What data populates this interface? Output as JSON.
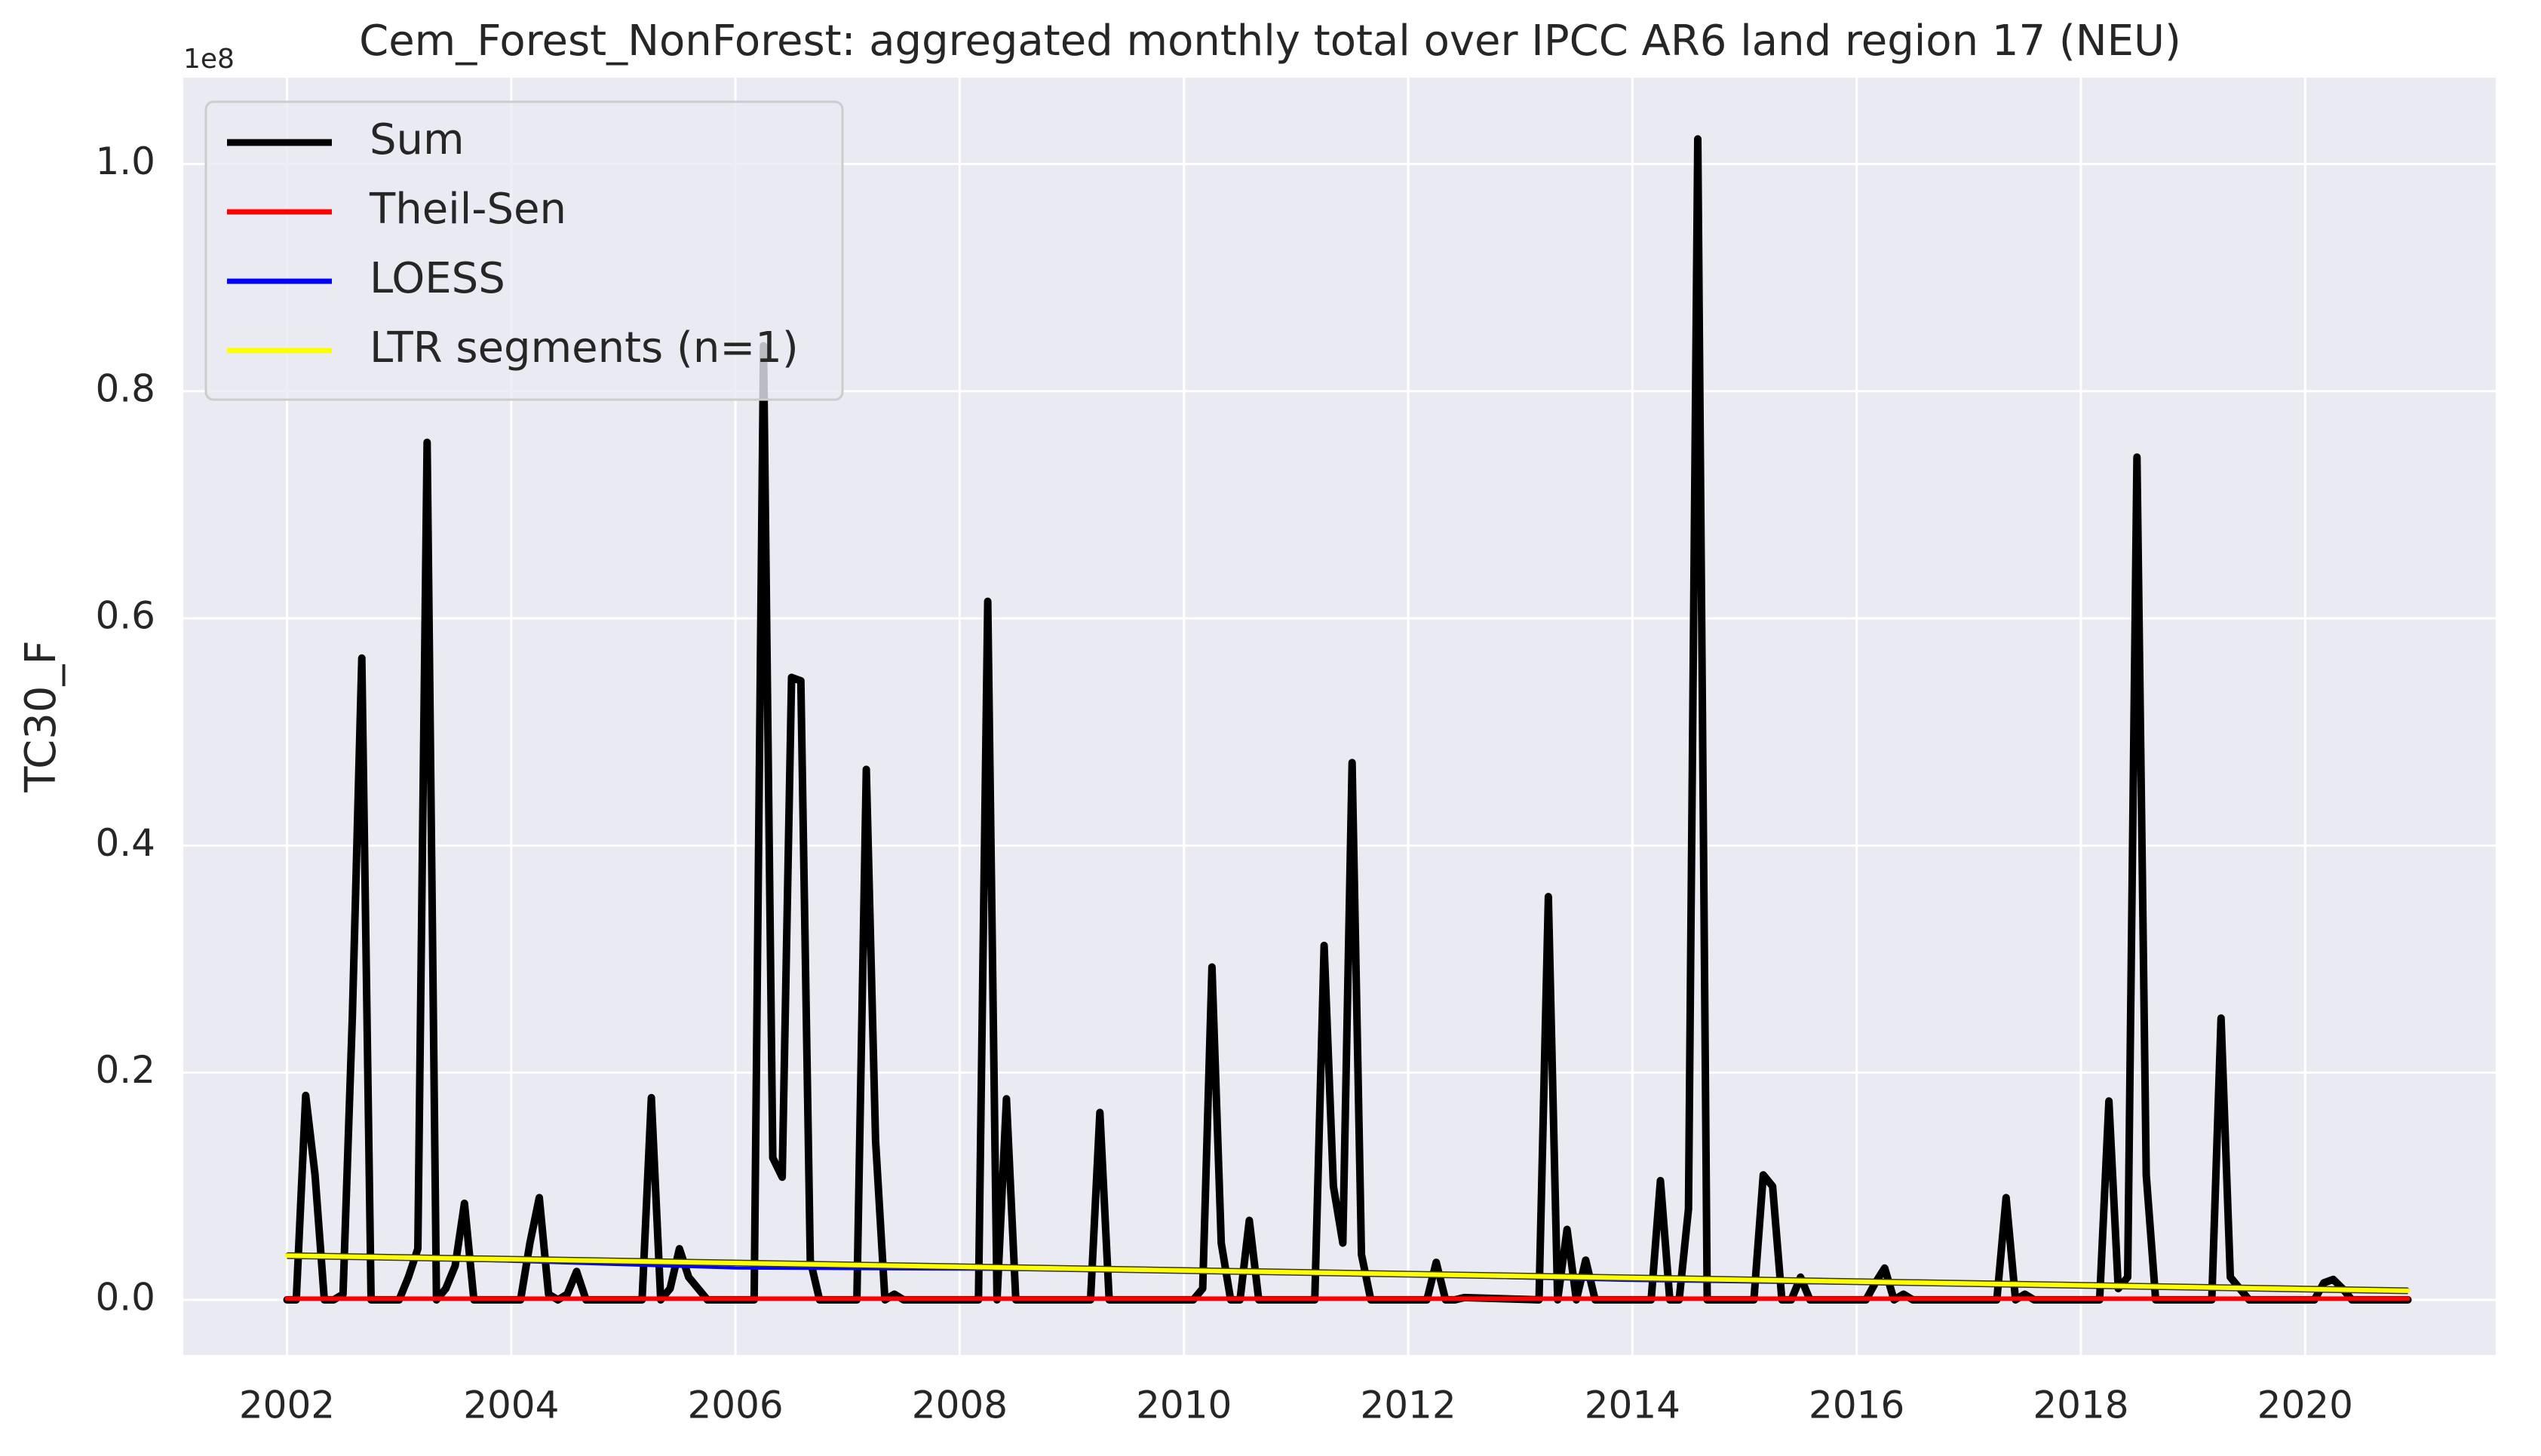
{
  "chart_data": {
    "type": "line",
    "title": "Cem_Forest_NonForest: aggregated monthly total over IPCC AR6 land region 17 (NEU)",
    "ylabel": "TC30_F",
    "offset_label": "1e8",
    "xlim": [
      2001.075,
      2021.7
    ],
    "xticks": [
      2002,
      2004,
      2006,
      2008,
      2010,
      2012,
      2014,
      2016,
      2018,
      2020
    ],
    "ylim": [
      -0.0485,
      1.076
    ],
    "yticks": [
      {
        "value": 0,
        "label": "0.0"
      },
      0.2,
      0.4,
      0.6,
      0.8,
      {
        "value": 1,
        "label": "1.0"
      }
    ],
    "grid": true,
    "legend": "upper left",
    "series": [
      {
        "name": "Sum",
        "color": "#000000",
        "x": [
          2002.0,
          2002.083,
          2002.167,
          2002.25,
          2002.333,
          2002.417,
          2002.5,
          2002.583,
          2002.667,
          2002.75,
          2003.0,
          2003.083,
          2003.167,
          2003.25,
          2003.333,
          2003.417,
          2003.5,
          2003.583,
          2003.667,
          2004.083,
          2004.167,
          2004.25,
          2004.333,
          2004.417,
          2004.5,
          2004.583,
          2004.667,
          2005.167,
          2005.25,
          2005.333,
          2005.417,
          2005.5,
          2005.583,
          2005.667,
          2005.75,
          2006.167,
          2006.25,
          2006.333,
          2006.417,
          2006.5,
          2006.583,
          2006.667,
          2006.75,
          2007.083,
          2007.167,
          2007.25,
          2007.333,
          2007.417,
          2007.5,
          2008.167,
          2008.25,
          2008.333,
          2008.417,
          2008.5,
          2009.167,
          2009.25,
          2009.333,
          2010.083,
          2010.167,
          2010.25,
          2010.333,
          2010.417,
          2010.5,
          2010.583,
          2010.667,
          2011.167,
          2011.25,
          2011.333,
          2011.417,
          2011.5,
          2011.583,
          2011.667,
          2012.167,
          2012.25,
          2012.333,
          2012.417,
          2012.5,
          2013.167,
          2013.25,
          2013.333,
          2013.417,
          2013.5,
          2013.583,
          2013.667,
          2014.167,
          2014.25,
          2014.333,
          2014.417,
          2014.5,
          2014.583,
          2014.667,
          2015.083,
          2015.167,
          2015.25,
          2015.333,
          2015.417,
          2015.5,
          2015.583,
          2016.083,
          2016.167,
          2016.25,
          2016.333,
          2016.417,
          2016.5,
          2017.25,
          2017.333,
          2017.417,
          2017.5,
          2017.583,
          2018.167,
          2018.25,
          2018.333,
          2018.417,
          2018.5,
          2018.583,
          2018.667,
          2019.167,
          2019.25,
          2019.333,
          2019.417,
          2019.5,
          2020.083,
          2020.167,
          2020.25,
          2020.333,
          2020.417,
          2020.917
        ],
        "values": [
          0,
          0,
          0.18,
          0.11,
          0,
          0,
          0.005,
          0.25,
          0.565,
          0,
          0,
          0.02,
          0.045,
          0.755,
          0,
          0.01,
          0.03,
          0.085,
          0,
          0,
          0.05,
          0.09,
          0.005,
          0,
          0.005,
          0.025,
          0,
          0,
          0.178,
          0,
          0.01,
          0.045,
          0.02,
          0.01,
          0,
          0,
          0.84,
          0.125,
          0.108,
          0.548,
          0.545,
          0.035,
          0,
          0,
          0.467,
          0.14,
          0,
          0.005,
          0,
          0,
          0.615,
          0,
          0.177,
          0,
          0,
          0.165,
          0,
          0,
          0.01,
          0.293,
          0.05,
          0,
          0,
          0.07,
          0,
          0,
          0.312,
          0.1,
          0.05,
          0.473,
          0.04,
          0,
          0,
          0.033,
          0,
          0,
          0.002,
          0,
          0.355,
          0,
          0.062,
          0,
          0.035,
          0,
          0,
          0.105,
          0,
          0,
          0.08,
          1.022,
          0,
          0,
          0.11,
          0.1,
          0,
          0,
          0.02,
          0,
          0,
          0.015,
          0.028,
          0,
          0.005,
          0,
          0,
          0.09,
          0,
          0.005,
          0,
          0,
          0.175,
          0.01,
          0.02,
          0.742,
          0.11,
          0,
          0,
          0.248,
          0.02,
          0.01,
          0,
          0,
          0.015,
          0.018,
          0.01,
          0,
          0
        ]
      },
      {
        "name": "Theil-Sen",
        "color": "#ff0000",
        "x": [
          2002.0,
          2020.917
        ],
        "values": [
          0.001,
          0.001
        ]
      },
      {
        "name": "LOESS",
        "color": "#0000ff",
        "x": [
          2002.0,
          2006.0,
          2010.0,
          2014.0,
          2018.0,
          2020.917
        ],
        "values": [
          0.04,
          0.028,
          0.026,
          0.017,
          0.012,
          0.009
        ]
      },
      {
        "name": "LTR segments (n=1)",
        "color": "#ffff00",
        "x": [
          2002.0,
          2020.917
        ],
        "values": [
          0.039,
          0.008
        ]
      }
    ]
  }
}
